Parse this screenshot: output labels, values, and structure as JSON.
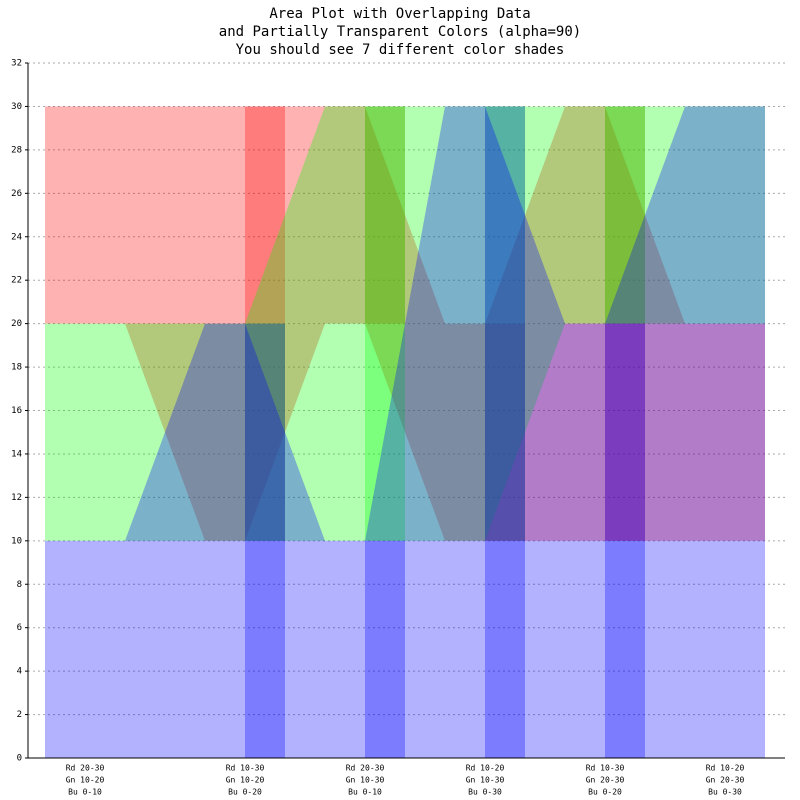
{
  "chart_data": {
    "type": "range-area",
    "title": [
      "Area Plot with Overlapping Data",
      "and Partially Transparent Colors (alpha=90)",
      "You should see 7 different color shades"
    ],
    "categories": [
      [
        "Rd 20-30",
        "Gn 10-20",
        "Bu 0-10"
      ],
      [
        "Rd 10-30",
        "Gn 10-20",
        "Bu 0-20"
      ],
      [
        "Rd 20-30",
        "Gn 10-30",
        "Bu 0-10"
      ],
      [
        "Rd 10-20",
        "Gn 10-30",
        "Bu 0-30"
      ],
      [
        "Rd 10-30",
        "Gn 20-30",
        "Bu 0-20"
      ],
      [
        "Rd 10-20",
        "Gn 20-30",
        "Bu 0-30"
      ]
    ],
    "series": [
      {
        "color": "#ff0000",
        "low": [
          20,
          10,
          20,
          10,
          10,
          10
        ],
        "high": [
          30,
          30,
          30,
          20,
          30,
          20
        ]
      },
      {
        "color": "#00ff00",
        "low": [
          10,
          10,
          10,
          10,
          20,
          20
        ],
        "high": [
          20,
          20,
          30,
          30,
          30,
          30
        ]
      },
      {
        "color": "#0000ff",
        "low": [
          0,
          0,
          0,
          0,
          0,
          0
        ],
        "high": [
          10,
          20,
          10,
          30,
          20,
          30
        ]
      }
    ],
    "opacity": 0.3,
    "ylim": [
      0,
      32
    ],
    "yticks": [
      0,
      2,
      4,
      6,
      8,
      10,
      12,
      14,
      16,
      18,
      20,
      22,
      24,
      26,
      28,
      30,
      32
    ],
    "grid": true
  }
}
